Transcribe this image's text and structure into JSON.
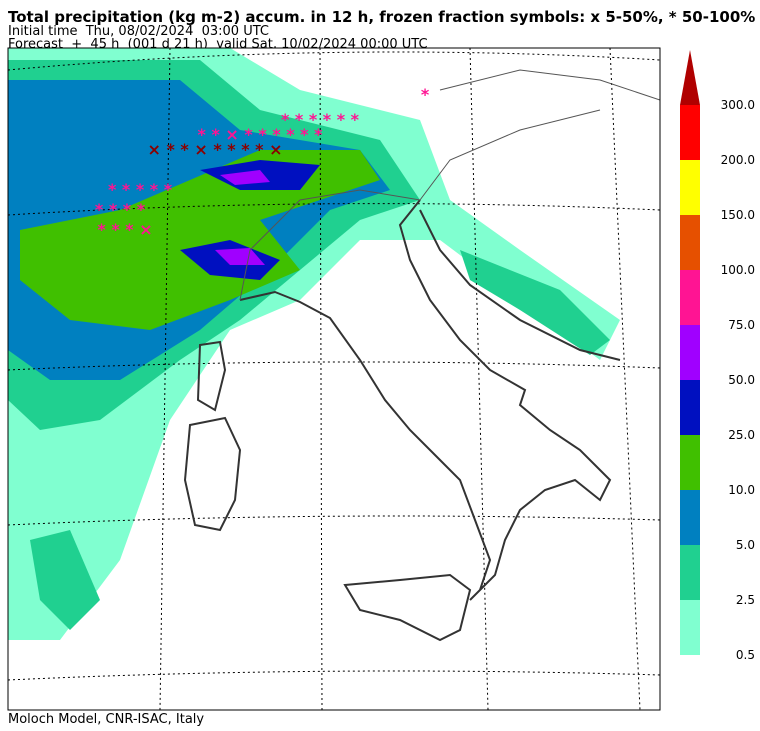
{
  "header": {
    "title": "Total precipitation (kg m-2) accum. in 12 h, frozen fraction symbols: x 5-50%, * 50-100%",
    "initial": "Initial time  Thu, 08/02/2024  03:00 UTC",
    "forecast": "Forecast  +  45 h  (001 d 21 h)  valid Sat, 10/02/2024 00:00 UTC"
  },
  "legend": {
    "labels": [
      "300.0",
      "200.0",
      "150.0",
      "100.0",
      "75.0",
      "50.0",
      "25.0",
      "10.0",
      "5.0",
      "2.5",
      "0.5"
    ],
    "colors": [
      "#ff0000",
      "#ffff00",
      "#e65000",
      "#ff1493",
      "#a000ff",
      "#0010c0",
      "#40c000",
      "#0080c0",
      "#20d090",
      "#80ffd0"
    ],
    "arrow_color": "#b00000"
  },
  "footer": "Moloch Model, CNR-ISAC, Italy"
}
